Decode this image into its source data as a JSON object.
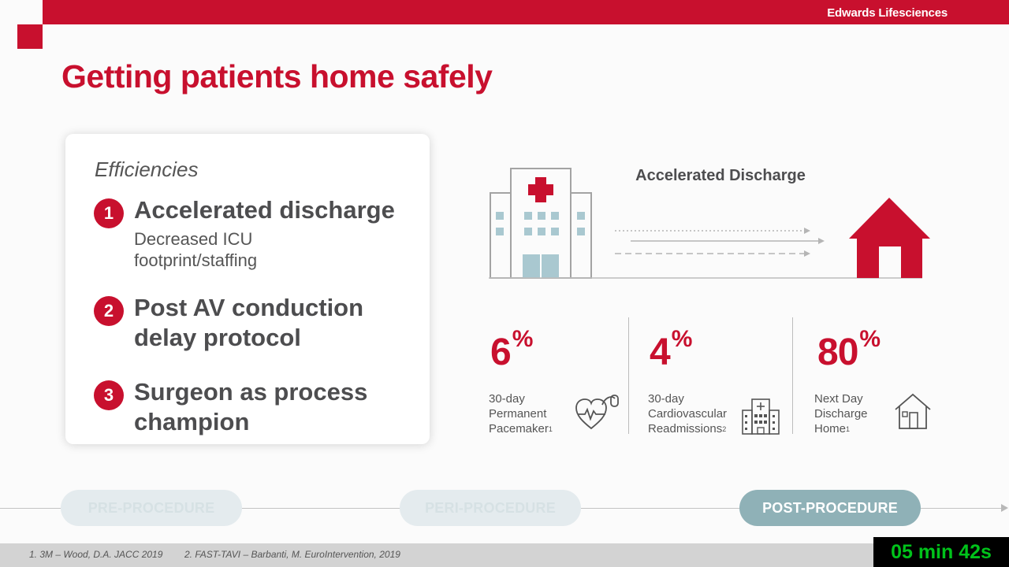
{
  "brand": "Edwards Lifesciences",
  "title": "Getting patients home safely",
  "card": {
    "heading": "Efficiencies",
    "items": [
      {
        "num": "1",
        "title": "Accelerated discharge",
        "sub": "Decreased ICU footprint/staffing"
      },
      {
        "num": "2",
        "title": "Post AV conduction delay protocol",
        "sub": ""
      },
      {
        "num": "3",
        "title": "Surgeon as process champion",
        "sub": ""
      }
    ]
  },
  "flow_label": "Accelerated Discharge",
  "stats": [
    {
      "value": "6",
      "unit": "%",
      "label_lines": [
        "30-day",
        "Permanent",
        "Pacemaker"
      ],
      "ref": "1",
      "icon": "heart-pacemaker-icon"
    },
    {
      "value": "4",
      "unit": "%",
      "label_lines": [
        "30-day",
        "Cardiovascular",
        "Readmissions"
      ],
      "ref": "2",
      "icon": "hospital-icon"
    },
    {
      "value": "80",
      "unit": "%",
      "label_lines": [
        "Next Day",
        "Discharge",
        "Home"
      ],
      "ref": "1",
      "icon": "house-icon"
    }
  ],
  "timeline": {
    "phases": [
      "PRE-PROCEDURE",
      "PERI-PROCEDURE",
      "POST-PROCEDURE"
    ],
    "active": "POST-PROCEDURE"
  },
  "references": [
    "1. 3M – Wood, D.A. JACC 2019",
    "2. FAST-TAVI – Barbanti, M. EuroIntervention, 2019"
  ],
  "timer": "05 min 42s",
  "colors": {
    "accent": "#c8102e",
    "hospital_window": "#a9c8d0",
    "active_phase": "#8fb1b7"
  }
}
